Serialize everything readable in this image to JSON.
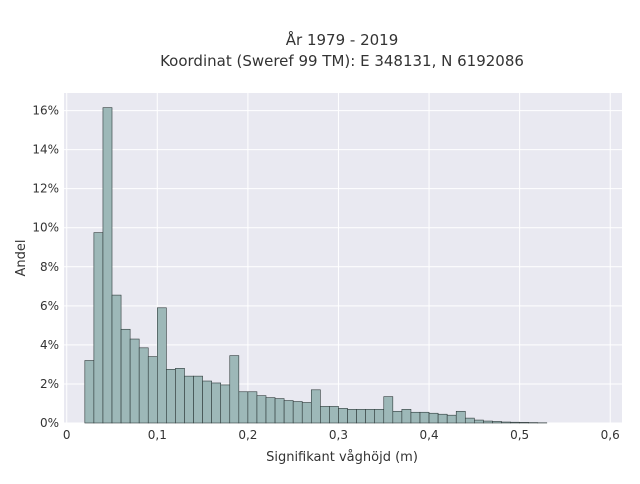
{
  "chart_data": {
    "type": "bar",
    "title": "År 1979 - 2019",
    "subtitle": "Koordinat (Sweref 99 TM): E 348131, N 6192086",
    "xlabel": "Signifikant våghöjd (m)",
    "ylabel": "Andel",
    "xlim": [
      -0.003,
      0.613
    ],
    "ylim": [
      0,
      16.9
    ],
    "x_ticks": [
      0,
      0.1,
      0.2,
      0.3,
      0.4,
      0.5,
      0.6
    ],
    "x_tick_labels": [
      "0",
      "0,1",
      "0,2",
      "0,3",
      "0,4",
      "0,5",
      "0,6"
    ],
    "y_ticks": [
      0,
      2,
      4,
      6,
      8,
      10,
      12,
      14,
      16
    ],
    "y_tick_labels": [
      "0%",
      "2%",
      "4%",
      "6%",
      "8%",
      "10%",
      "12%",
      "14%",
      "16%"
    ],
    "y_unit": "%",
    "bin_start": 0.02,
    "bin_width": 0.01,
    "values": [
      3.2,
      9.75,
      16.15,
      6.55,
      4.8,
      4.3,
      3.85,
      3.4,
      5.9,
      2.75,
      2.8,
      2.4,
      2.4,
      2.15,
      2.05,
      1.95,
      3.45,
      1.6,
      1.6,
      1.4,
      1.3,
      1.25,
      1.15,
      1.1,
      1.05,
      1.7,
      0.85,
      0.85,
      0.75,
      0.7,
      0.7,
      0.7,
      0.7,
      1.35,
      0.6,
      0.7,
      0.55,
      0.55,
      0.5,
      0.45,
      0.4,
      0.6,
      0.25,
      0.15,
      0.1,
      0.08,
      0.05,
      0.04,
      0.03,
      0.02,
      0.01,
      0.0,
      0.0,
      0.0,
      0.0,
      0.0,
      0.0
    ],
    "grid": true,
    "colors": {
      "bar_fill": "#9db8b8",
      "bar_stroke": "#2e3a3a",
      "plot_background": "#e9e9f1",
      "grid": "#ffffff",
      "text": "#333333"
    }
  }
}
